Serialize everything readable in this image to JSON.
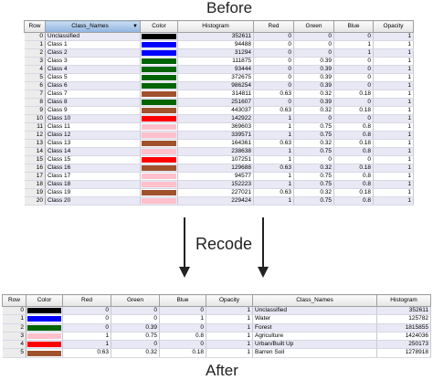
{
  "captions": {
    "before": "Before",
    "recode": "Recode",
    "after": "After"
  },
  "before": {
    "headers": [
      "Row",
      "Class_Names",
      "Color",
      "Histogram",
      "Red",
      "Green",
      "Blue",
      "Opacity"
    ],
    "rows": [
      {
        "row": "0",
        "name": "Unclassified",
        "color": "#000000",
        "hist": "352611",
        "r": "0",
        "g": "0",
        "b": "0",
        "o": "1"
      },
      {
        "row": "1",
        "name": "Class 1",
        "color": "#0000ff",
        "hist": "94488",
        "r": "0",
        "g": "0",
        "b": "1",
        "o": "1"
      },
      {
        "row": "2",
        "name": "Class 2",
        "color": "#0000ff",
        "hist": "31294",
        "r": "0",
        "g": "0",
        "b": "1",
        "o": "1"
      },
      {
        "row": "3",
        "name": "Class 3",
        "color": "#006400",
        "hist": "111875",
        "r": "0",
        "g": "0.39",
        "b": "0",
        "o": "1"
      },
      {
        "row": "4",
        "name": "Class 4",
        "color": "#006400",
        "hist": "93444",
        "r": "0",
        "g": "0.39",
        "b": "0",
        "o": "1"
      },
      {
        "row": "5",
        "name": "Class 5",
        "color": "#006400",
        "hist": "372675",
        "r": "0",
        "g": "0.39",
        "b": "0",
        "o": "1"
      },
      {
        "row": "6",
        "name": "Class 6",
        "color": "#006400",
        "hist": "986254",
        "r": "0",
        "g": "0.39",
        "b": "0",
        "o": "1"
      },
      {
        "row": "7",
        "name": "Class 7",
        "color": "#a0522d",
        "hist": "314811",
        "r": "0.63",
        "g": "0.32",
        "b": "0.18",
        "o": "1"
      },
      {
        "row": "8",
        "name": "Class 8",
        "color": "#006400",
        "hist": "251607",
        "r": "0",
        "g": "0.39",
        "b": "0",
        "o": "1"
      },
      {
        "row": "9",
        "name": "Class 9",
        "color": "#a0522d",
        "hist": "443037",
        "r": "0.63",
        "g": "0.32",
        "b": "0.18",
        "o": "1"
      },
      {
        "row": "10",
        "name": "Class 10",
        "color": "#ff0000",
        "hist": "142922",
        "r": "1",
        "g": "0",
        "b": "0",
        "o": "1"
      },
      {
        "row": "11",
        "name": "Class 11",
        "color": "#ffc0cb",
        "hist": "369603",
        "r": "1",
        "g": "0.75",
        "b": "0.8",
        "o": "1"
      },
      {
        "row": "12",
        "name": "Class 12",
        "color": "#ffc0cb",
        "hist": "339571",
        "r": "1",
        "g": "0.75",
        "b": "0.8",
        "o": "1"
      },
      {
        "row": "13",
        "name": "Class 13",
        "color": "#a0522d",
        "hist": "164361",
        "r": "0.63",
        "g": "0.32",
        "b": "0.18",
        "o": "1"
      },
      {
        "row": "14",
        "name": "Class 14",
        "color": "#ffc0cb",
        "hist": "238638",
        "r": "1",
        "g": "0.75",
        "b": "0.8",
        "o": "1"
      },
      {
        "row": "15",
        "name": "Class 15",
        "color": "#ff0000",
        "hist": "107251",
        "r": "1",
        "g": "0",
        "b": "0",
        "o": "1"
      },
      {
        "row": "16",
        "name": "Class 16",
        "color": "#a0522d",
        "hist": "129688",
        "r": "0.63",
        "g": "0.32",
        "b": "0.18",
        "o": "1"
      },
      {
        "row": "17",
        "name": "Class 17",
        "color": "#ffc0cb",
        "hist": "94577",
        "r": "1",
        "g": "0.75",
        "b": "0.8",
        "o": "1"
      },
      {
        "row": "18",
        "name": "Class 18",
        "color": "#ffc0cb",
        "hist": "152223",
        "r": "1",
        "g": "0.75",
        "b": "0.8",
        "o": "1"
      },
      {
        "row": "19",
        "name": "Class 19",
        "color": "#a0522d",
        "hist": "227021",
        "r": "0.63",
        "g": "0.32",
        "b": "0.18",
        "o": "1"
      },
      {
        "row": "20",
        "name": "Class 20",
        "color": "#ffc0cb",
        "hist": "229424",
        "r": "1",
        "g": "0.75",
        "b": "0.8",
        "o": "1"
      }
    ]
  },
  "after": {
    "headers": [
      "Row",
      "Color",
      "Red",
      "Green",
      "Blue",
      "Opacity",
      "Class_Names",
      "Histogram"
    ],
    "rows": [
      {
        "row": "0",
        "color": "#000000",
        "r": "0",
        "g": "0",
        "b": "0",
        "o": "1",
        "name": "Unclassified",
        "hist": "352611"
      },
      {
        "row": "1",
        "color": "#0000ff",
        "r": "0",
        "g": "0",
        "b": "1",
        "o": "1",
        "name": "Water",
        "hist": "125782"
      },
      {
        "row": "2",
        "color": "#006400",
        "r": "0",
        "g": "0.39",
        "b": "0",
        "o": "1",
        "name": "Forest",
        "hist": "1815855"
      },
      {
        "row": "3",
        "color": "#ffc0cb",
        "r": "1",
        "g": "0.75",
        "b": "0.8",
        "o": "1",
        "name": "Agriculture",
        "hist": "1424036"
      },
      {
        "row": "4",
        "color": "#ff0000",
        "r": "1",
        "g": "0",
        "b": "0",
        "o": "1",
        "name": "Urban/Built Up",
        "hist": "250173"
      },
      {
        "row": "5",
        "color": "#a0522d",
        "r": "0.63",
        "g": "0.32",
        "b": "0.18",
        "o": "1",
        "name": "Barren Soil",
        "hist": "1278918"
      }
    ]
  },
  "icons": {
    "dropdown": "dropdown-triangle-icon",
    "arrow": "arrow-down-icon"
  }
}
